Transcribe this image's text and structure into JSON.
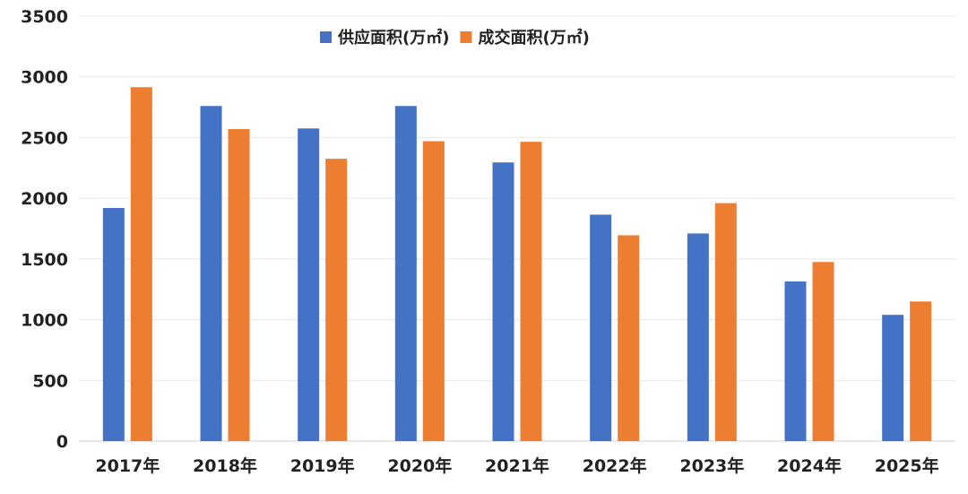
{
  "chart_data": {
    "type": "bar",
    "categories": [
      "2017年",
      "2018年",
      "2019年",
      "2020年",
      "2021年",
      "2022年",
      "2023年",
      "2024年",
      "2025年"
    ],
    "series": [
      {
        "name": "供应面积(万㎡)",
        "color": "#4472c4",
        "values": [
          1920,
          2760,
          2575,
          2760,
          2295,
          1865,
          1710,
          1315,
          1040
        ]
      },
      {
        "name": "成交面积(万㎡)",
        "color": "#ed7d31",
        "values": [
          2915,
          2570,
          2325,
          2470,
          2465,
          1695,
          1960,
          1475,
          1150
        ]
      }
    ],
    "yticks": [
      "0",
      "500",
      "1000",
      "1500",
      "2000",
      "2500",
      "3000",
      "3500"
    ],
    "ylim": [
      0,
      3500
    ],
    "grid": true,
    "legend": "top-center",
    "title": "",
    "xlabel": "",
    "ylabel": ""
  }
}
